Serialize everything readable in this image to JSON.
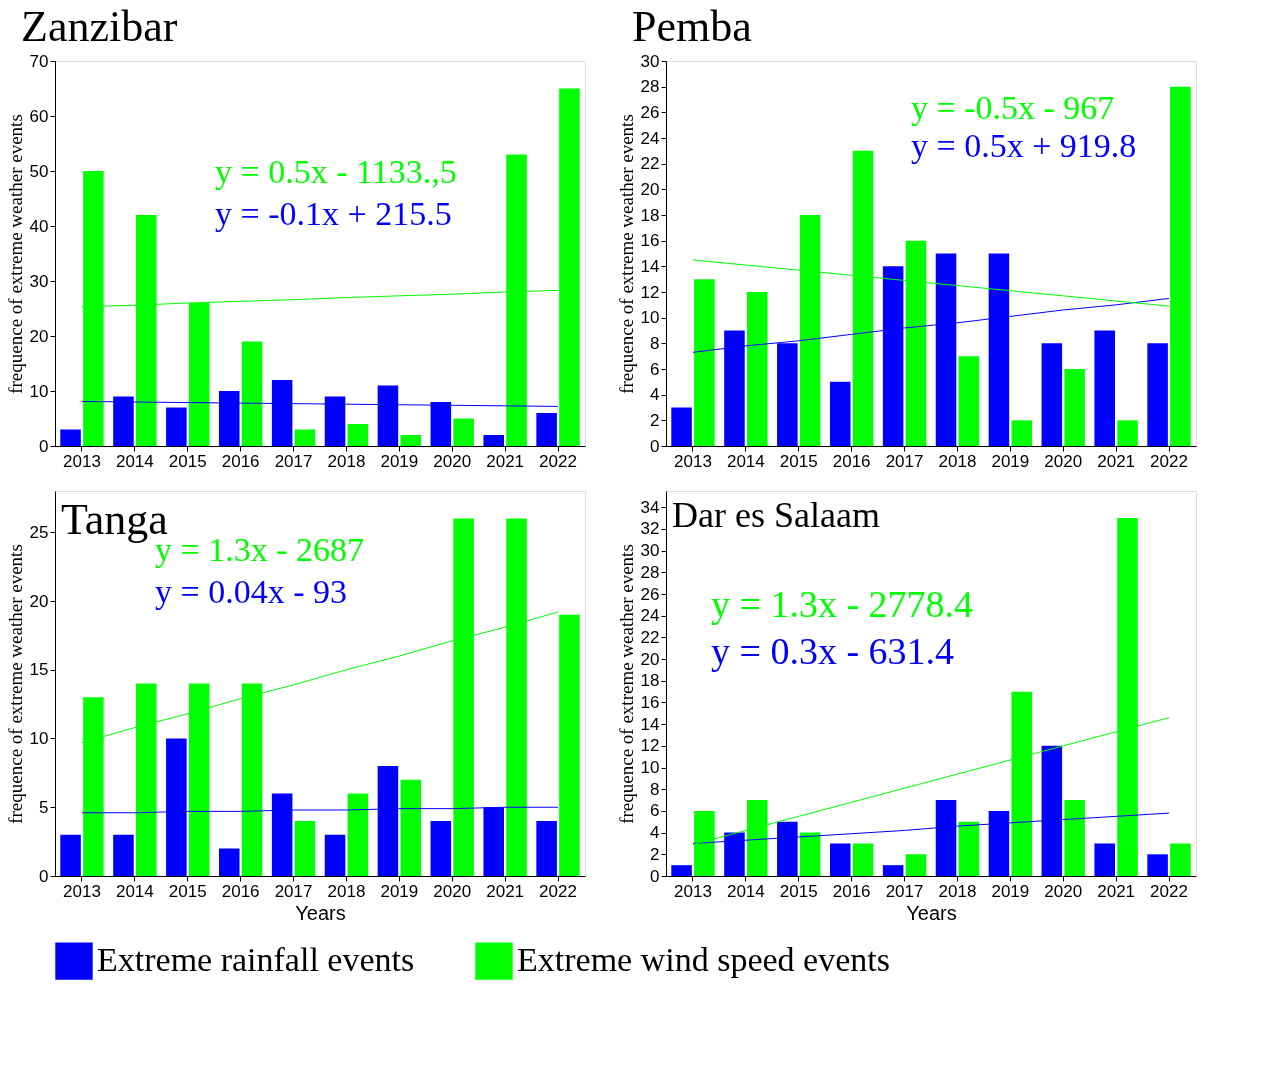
{
  "chart_data": [
    {
      "type": "bar",
      "title": "Zanzibar",
      "ylabel": "frequence of extreme weather events",
      "categories": [
        "2013",
        "2014",
        "2015",
        "2016",
        "2017",
        "2018",
        "2019",
        "2020",
        "2021",
        "2022"
      ],
      "ylim": [
        0,
        70
      ],
      "yticks": [
        0,
        10,
        20,
        30,
        40,
        50,
        60,
        70
      ],
      "grid": false,
      "legend": "bottom",
      "series": [
        {
          "name": "Extreme rainfall events",
          "color": "#0000ff",
          "values": [
            3,
            9,
            7,
            10,
            12,
            9,
            11,
            8,
            2,
            6
          ]
        },
        {
          "name": "Extreme wind speed events",
          "color": "#00ff00",
          "values": [
            50,
            42,
            26,
            19,
            3,
            4,
            2,
            5,
            53,
            65
          ]
        },
        {
          "type": "line",
          "color": "#0000ff",
          "values": [
            8.1,
            8.0,
            7.9,
            7.8,
            7.7,
            7.6,
            7.5,
            7.4,
            7.3,
            7.2
          ]
        },
        {
          "type": "line",
          "color": "#00ff00",
          "values": [
            25.3,
            25.6,
            26.0,
            26.3,
            26.6,
            27.0,
            27.3,
            27.6,
            28.0,
            28.3
          ]
        }
      ],
      "annotations": [
        "y = 0.5x - 1133.,5",
        "y = -0.1x + 215.5"
      ]
    },
    {
      "type": "bar",
      "title": "Pemba",
      "ylabel": "frequence of extreme weather events",
      "categories": [
        "2013",
        "2014",
        "2015",
        "2016",
        "2017",
        "2018",
        "2019",
        "2020",
        "2021",
        "2022"
      ],
      "ylim": [
        0,
        30
      ],
      "yticks": [
        0,
        2,
        4,
        6,
        8,
        10,
        12,
        14,
        16,
        18,
        20,
        22,
        24,
        26,
        28,
        30
      ],
      "grid": false,
      "legend": "bottom",
      "series": [
        {
          "name": "Extreme rainfall events",
          "color": "#0000ff",
          "values": [
            3,
            9,
            8,
            5,
            14,
            15,
            15,
            8,
            9,
            8
          ]
        },
        {
          "name": "Extreme wind speed events",
          "color": "#00ff00",
          "values": [
            13,
            12,
            18,
            23,
            16,
            7,
            2,
            6,
            2,
            28
          ]
        },
        {
          "type": "line",
          "color": "#0000ff",
          "values": [
            7.3,
            7.8,
            8.2,
            8.7,
            9.2,
            9.6,
            10.1,
            10.6,
            11.0,
            11.5
          ]
        },
        {
          "type": "line",
          "color": "#00ff00",
          "values": [
            14.5,
            14.1,
            13.7,
            13.3,
            12.9,
            12.5,
            12.1,
            11.7,
            11.3,
            10.9
          ]
        }
      ],
      "annotations": [
        "y = -0.5x - 967",
        "y = 0.5x + 919.8"
      ]
    },
    {
      "type": "bar",
      "title": "Tanga",
      "xlabel": "Years",
      "ylabel": "frequence of extreme weather events",
      "categories": [
        "2013",
        "2014",
        "2015",
        "2016",
        "2017",
        "2018",
        "2019",
        "2020",
        "2021",
        "2022"
      ],
      "ylim": [
        0,
        28
      ],
      "yticks": [
        0,
        5,
        10,
        15,
        20,
        25
      ],
      "grid": false,
      "legend": "bottom",
      "series": [
        {
          "name": "Extreme rainfall events",
          "color": "#0000ff",
          "values": [
            3,
            3,
            10,
            2,
            6,
            3,
            8,
            4,
            5,
            4
          ]
        },
        {
          "name": "Extreme wind speed events",
          "color": "#00ff00",
          "values": [
            13,
            14,
            14,
            14,
            4,
            6,
            7,
            26,
            26,
            19
          ]
        },
        {
          "type": "line",
          "color": "#0000ff",
          "values": [
            4.6,
            4.6,
            4.7,
            4.7,
            4.8,
            4.8,
            4.9,
            4.9,
            5.0,
            5.0
          ]
        },
        {
          "type": "line",
          "color": "#00ff00",
          "values": [
            9.7,
            10.8,
            11.8,
            12.9,
            13.9,
            15.0,
            16.0,
            17.1,
            18.1,
            19.2
          ]
        }
      ],
      "annotations": [
        "y = 1.3x - 2687",
        "y = 0.04x - 93"
      ]
    },
    {
      "type": "bar",
      "title": "Dar es Salaam",
      "xlabel": "Years",
      "ylabel": "frequence of extreme weather events",
      "categories": [
        "2013",
        "2014",
        "2015",
        "2016",
        "2017",
        "2018",
        "2019",
        "2020",
        "2021",
        "2022"
      ],
      "ylim": [
        0,
        35.5
      ],
      "yticks": [
        0,
        2,
        4,
        6,
        8,
        10,
        12,
        14,
        16,
        18,
        20,
        22,
        24,
        26,
        28,
        30,
        32,
        34
      ],
      "grid": false,
      "legend": "bottom",
      "series": [
        {
          "name": "Extreme rainfall events",
          "color": "#0000ff",
          "values": [
            1,
            4,
            5,
            3,
            1,
            7,
            6,
            12,
            3,
            2
          ]
        },
        {
          "name": "Extreme wind speed events",
          "color": "#00ff00",
          "values": [
            6,
            7,
            4,
            3,
            2,
            5,
            17,
            7,
            33,
            3
          ]
        },
        {
          "type": "line",
          "color": "#0000ff",
          "values": [
            3.0,
            3.3,
            3.6,
            3.9,
            4.2,
            4.6,
            4.9,
            5.2,
            5.5,
            5.8
          ]
        },
        {
          "type": "line",
          "color": "#00ff00",
          "values": [
            2.9,
            4.2,
            5.5,
            6.8,
            8.1,
            9.4,
            10.7,
            12.0,
            13.3,
            14.6
          ]
        }
      ],
      "annotations": [
        "y = 1.3x - 2778.4",
        "y = 0.3x - 631.4"
      ]
    }
  ]
}
